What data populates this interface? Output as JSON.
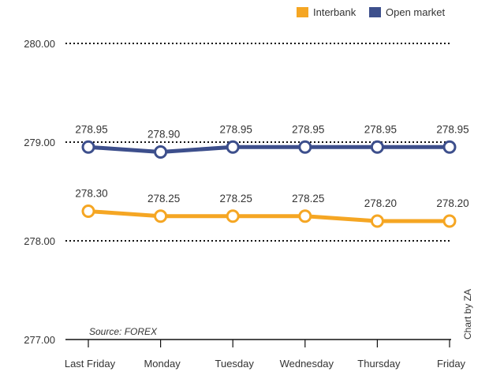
{
  "chart_data": {
    "type": "line",
    "categories": [
      "Last Friday",
      "Monday",
      "Tuesday",
      "Wednesday",
      "Thursday",
      "Friday"
    ],
    "series": [
      {
        "name": "Interbank",
        "values": [
          278.3,
          278.25,
          278.25,
          278.25,
          278.2,
          278.2
        ],
        "labels": [
          "278.30",
          "278.25",
          "278.25",
          "278.25",
          "278.20",
          "278.20"
        ],
        "color": "#f5a623"
      },
      {
        "name": "Open market",
        "values": [
          278.95,
          278.9,
          278.95,
          278.95,
          278.95,
          278.95
        ],
        "labels": [
          "278.95",
          "278.90",
          "278.95",
          "278.95",
          "278.95",
          "278.95"
        ],
        "color": "#3d4f8c"
      }
    ],
    "yticks": [
      "277.00",
      "278.00",
      "279.00",
      "280.00"
    ],
    "ylim": [
      277,
      280
    ],
    "grid": true,
    "legend_position": "top-right",
    "source": "Source: FOREX",
    "credit": "Chart by ZA"
  }
}
